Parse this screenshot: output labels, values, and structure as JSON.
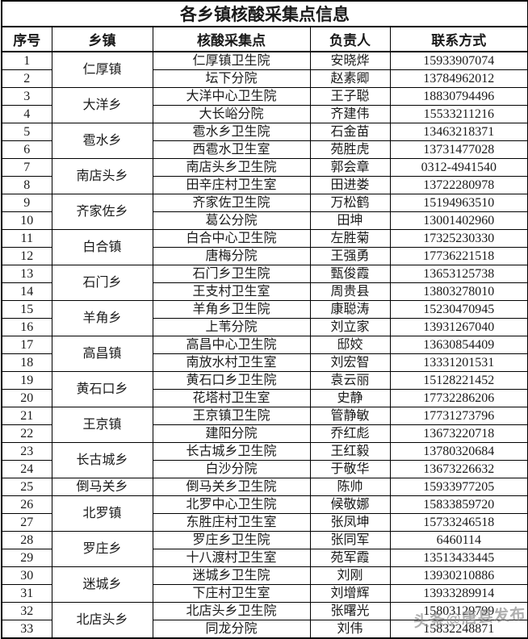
{
  "page": {
    "title": "各乡镇核酸采集点信息"
  },
  "table": {
    "columns": [
      "序号",
      "乡镇",
      "核酸采集点",
      "负责人",
      "联系方式"
    ],
    "groups": [
      {
        "township": "仁厚镇",
        "entries": [
          {
            "no": "1",
            "point": "仁厚镇卫生院",
            "person": "安晓烨",
            "phone": "15933907074"
          },
          {
            "no": "2",
            "point": "坛下分院",
            "person": "赵素卿",
            "phone": "13784962012"
          }
        ]
      },
      {
        "township": "大洋乡",
        "entries": [
          {
            "no": "3",
            "point": "大洋中心卫生院",
            "person": "王子聪",
            "phone": "18830794496"
          },
          {
            "no": "4",
            "point": "大长峪分院",
            "person": "齐建伟",
            "phone": "15533211216"
          }
        ]
      },
      {
        "township": "雹水乡",
        "entries": [
          {
            "no": "5",
            "point": "雹水乡卫生院",
            "person": "石金苗",
            "phone": "13463218371"
          },
          {
            "no": "6",
            "point": "西雹水卫生室",
            "person": "苑胜虎",
            "phone": "13731477028"
          }
        ]
      },
      {
        "township": "南店头乡",
        "entries": [
          {
            "no": "7",
            "point": "南店头乡卫生院",
            "person": "郭会章",
            "phone": "0312-4941540"
          },
          {
            "no": "8",
            "point": "田辛庄村卫生室",
            "person": "田进娄",
            "phone": "13722280978"
          }
        ]
      },
      {
        "township": "齐家佐乡",
        "entries": [
          {
            "no": "9",
            "point": "齐家佐卫生院",
            "person": "万松鹤",
            "phone": "15194963510"
          },
          {
            "no": "10",
            "point": "葛公分院",
            "person": "田坤",
            "phone": "13001402960"
          }
        ]
      },
      {
        "township": "白合镇",
        "entries": [
          {
            "no": "11",
            "point": "白合中心卫生院",
            "person": "左胜菊",
            "phone": "17325230330"
          },
          {
            "no": "12",
            "point": "唐梅分院",
            "person": "王强勇",
            "phone": "17736221518"
          }
        ]
      },
      {
        "township": "石门乡",
        "entries": [
          {
            "no": "13",
            "point": "石门乡卫生院",
            "person": "甄俊霞",
            "phone": "13653125738"
          },
          {
            "no": "14",
            "point": "王支村卫生室",
            "person": "周贵县",
            "phone": "13803278010"
          }
        ]
      },
      {
        "township": "羊角乡",
        "entries": [
          {
            "no": "15",
            "point": "羊角乡卫生院",
            "person": "康聪涛",
            "phone": "15230470945"
          },
          {
            "no": "16",
            "point": "上苇分院",
            "person": "刘立家",
            "phone": "13931267040"
          }
        ]
      },
      {
        "township": "高昌镇",
        "entries": [
          {
            "no": "17",
            "point": "高昌中心卫生院",
            "person": "邸姣",
            "phone": "13630854409"
          },
          {
            "no": "18",
            "point": "南放水村卫生室",
            "person": "刘宏智",
            "phone": "13331201531"
          }
        ]
      },
      {
        "township": "黄石口乡",
        "entries": [
          {
            "no": "19",
            "point": "黄石口乡卫生院",
            "person": "袁云丽",
            "phone": "15128221452"
          },
          {
            "no": "20",
            "point": "花塔村卫生室",
            "person": "史静",
            "phone": "17732286206"
          }
        ]
      },
      {
        "township": "王京镇",
        "entries": [
          {
            "no": "21",
            "point": "王京镇卫生院",
            "person": "管静敏",
            "phone": "17731273796"
          },
          {
            "no": "22",
            "point": "建阳分院",
            "person": "乔红彪",
            "phone": "13673220718"
          }
        ]
      },
      {
        "township": "长古城乡",
        "entries": [
          {
            "no": "23",
            "point": "长古城乡卫生院",
            "person": "王红毅",
            "phone": "13780320684"
          },
          {
            "no": "24",
            "point": "白沙分院",
            "person": "于敬华",
            "phone": "13673226632"
          }
        ]
      },
      {
        "township": "倒马关乡",
        "entries": [
          {
            "no": "25",
            "point": "倒马关乡卫生院",
            "person": "陈帅",
            "phone": "15933977205"
          }
        ]
      },
      {
        "township": "北罗镇",
        "entries": [
          {
            "no": "26",
            "point": "北罗中心卫生院",
            "person": "候敬娜",
            "phone": "15833859720"
          },
          {
            "no": "27",
            "point": "东胜庄村卫生室",
            "person": "张凤坤",
            "phone": "15733246518"
          }
        ]
      },
      {
        "township": "罗庄乡",
        "entries": [
          {
            "no": "28",
            "point": "罗庄乡卫生院",
            "person": "张同军",
            "phone": "6460114"
          },
          {
            "no": "29",
            "point": "十八渡村卫生室",
            "person": "苑军霞",
            "phone": "13513433445"
          }
        ]
      },
      {
        "township": "迷城乡",
        "entries": [
          {
            "no": "30",
            "point": "迷城乡卫生院",
            "person": "刘刚",
            "phone": "13930210886"
          },
          {
            "no": "31",
            "point": "下庄村卫生室",
            "person": "刘增辉",
            "phone": "13933289914"
          }
        ]
      },
      {
        "township": "北店头乡",
        "entries": [
          {
            "no": "32",
            "point": "北店头乡卫生院",
            "person": "张曙光",
            "phone": "15803129799"
          },
          {
            "no": "33",
            "point": "同龙分院",
            "person": "刘伟",
            "phone": "15832248871"
          }
        ]
      }
    ]
  },
  "watermark": {
    "text": "头条@唐县发布"
  },
  "colors": {
    "border": "#000000",
    "text": "#1a1a1a",
    "background": "#ffffff",
    "watermark": "#8a8a8a"
  }
}
